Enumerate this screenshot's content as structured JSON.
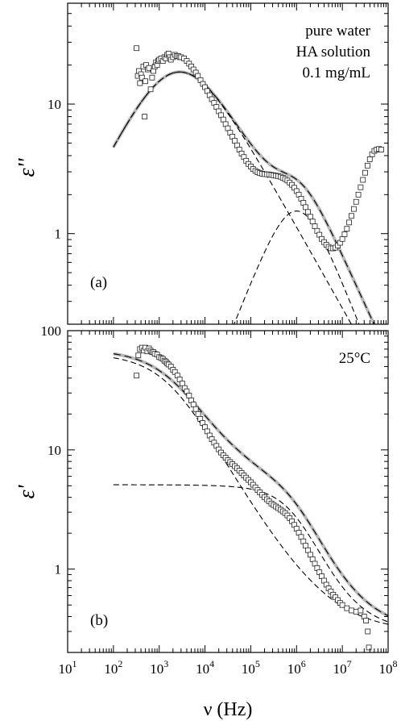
{
  "chart_data": [
    {
      "type": "scatter",
      "panel_label": "(a)",
      "ylabel": "ε''",
      "x_scale": "log",
      "y_scale": "log",
      "xlim": [
        10,
        100000000
      ],
      "ylim": [
        0.2,
        60
      ],
      "y_ticks": [
        {
          "value": 1,
          "label": "1"
        },
        {
          "value": 10,
          "label": "10"
        }
      ],
      "annotations": [
        "pure water",
        "HA solution",
        "0.1 mg/mL"
      ],
      "annotation_position": "top-right",
      "grid": false,
      "relaxations": [
        {
          "d_eps": 60,
          "tau": 6.48e-05,
          "alpha": 0.7,
          "beta": 0.9
        },
        {
          "d_eps": 3.5,
          "tau": 1.59e-07,
          "alpha": 0.9,
          "beta": 1.0
        }
      ],
      "high_freq_permittivity": 0.3,
      "points": [
        [
          320,
          27
        ],
        [
          340,
          16.5
        ],
        [
          360,
          18
        ],
        [
          380,
          14.5
        ],
        [
          400,
          17
        ],
        [
          420,
          16
        ],
        [
          450,
          19.5
        ],
        [
          480,
          8
        ],
        [
          500,
          15
        ],
        [
          520,
          20
        ],
        [
          560,
          18.5
        ],
        [
          600,
          19
        ],
        [
          650,
          13
        ],
        [
          700,
          16
        ],
        [
          750,
          18
        ],
        [
          800,
          19.5
        ],
        [
          850,
          21
        ],
        [
          900,
          20
        ],
        [
          950,
          21.5
        ],
        [
          1000,
          22
        ],
        [
          1100,
          22.5
        ],
        [
          1200,
          21.5
        ],
        [
          1300,
          23
        ],
        [
          1400,
          22.5
        ],
        [
          1500,
          24
        ],
        [
          1600,
          24.5
        ],
        [
          1700,
          23
        ],
        [
          1800,
          22
        ],
        [
          2000,
          23
        ],
        [
          2200,
          24
        ],
        [
          2400,
          23.5
        ],
        [
          2600,
          23.5
        ],
        [
          2800,
          23
        ],
        [
          3000,
          23
        ],
        [
          3500,
          22.5
        ],
        [
          4000,
          21.5
        ],
        [
          4500,
          20.5
        ],
        [
          5000,
          19.5
        ],
        [
          5600,
          18.5
        ],
        [
          6300,
          17.5
        ],
        [
          7000,
          16.5
        ],
        [
          8000,
          15.3
        ],
        [
          9000,
          14.3
        ],
        [
          10000,
          13.5
        ],
        [
          11200,
          12.6
        ],
        [
          12600,
          11.7
        ],
        [
          14100,
          10.9
        ],
        [
          15800,
          10.2
        ],
        [
          17800,
          9.5
        ],
        [
          20000,
          8.8
        ],
        [
          22400,
          8.2
        ],
        [
          25100,
          7.6
        ],
        [
          28200,
          7.0
        ],
        [
          31600,
          6.5
        ],
        [
          35500,
          6.0
        ],
        [
          39800,
          5.6
        ],
        [
          44700,
          5.2
        ],
        [
          50100,
          4.8
        ],
        [
          56200,
          4.45
        ],
        [
          63100,
          4.15
        ],
        [
          70800,
          3.9
        ],
        [
          79400,
          3.65
        ],
        [
          89100,
          3.45
        ],
        [
          100000,
          3.3
        ],
        [
          112000,
          3.15
        ],
        [
          126000,
          3.05
        ],
        [
          141000,
          2.98
        ],
        [
          158000,
          2.93
        ],
        [
          178000,
          2.9
        ],
        [
          200000,
          2.88
        ],
        [
          224000,
          2.87
        ],
        [
          251000,
          2.86
        ],
        [
          282000,
          2.84
        ],
        [
          316000,
          2.82
        ],
        [
          355000,
          2.8
        ],
        [
          398000,
          2.78
        ],
        [
          447000,
          2.75
        ],
        [
          501000,
          2.7
        ],
        [
          562000,
          2.64
        ],
        [
          631000,
          2.57
        ],
        [
          708000,
          2.48
        ],
        [
          794000,
          2.38
        ],
        [
          891000,
          2.26
        ],
        [
          1000000,
          2.13
        ],
        [
          1120000,
          2.0
        ],
        [
          1260000,
          1.86
        ],
        [
          1410000,
          1.73
        ],
        [
          1580000,
          1.6
        ],
        [
          1780000,
          1.47
        ],
        [
          2000000,
          1.35
        ],
        [
          2240000,
          1.24
        ],
        [
          2510000,
          1.14
        ],
        [
          2820000,
          1.05
        ],
        [
          3160000,
          0.98
        ],
        [
          3550000,
          0.91
        ],
        [
          3980000,
          0.86
        ],
        [
          4470000,
          0.82
        ],
        [
          5010000,
          0.79
        ],
        [
          5620000,
          0.77
        ],
        [
          6310000,
          0.77
        ],
        [
          7080000,
          0.78
        ],
        [
          7940000,
          0.81
        ],
        [
          8910000,
          0.85
        ],
        [
          10000000,
          0.91
        ],
        [
          11200000,
          0.99
        ],
        [
          12600000,
          1.09
        ],
        [
          14100000,
          1.22
        ],
        [
          15800000,
          1.37
        ],
        [
          17800000,
          1.55
        ],
        [
          20000000,
          1.76
        ],
        [
          22400000,
          2.0
        ],
        [
          25100000,
          2.28
        ],
        [
          28200000,
          2.6
        ],
        [
          31600000,
          2.95
        ],
        [
          35500000,
          3.35
        ],
        [
          39800000,
          3.75
        ],
        [
          44700000,
          4.1
        ],
        [
          50100000,
          4.35
        ],
        [
          56200000,
          4.45
        ],
        [
          63100000,
          4.5
        ],
        [
          70800000,
          4.45
        ]
      ]
    },
    {
      "type": "scatter",
      "panel_label": "(b)",
      "ylabel": "ε'",
      "xlabel": "ν (Hz)",
      "x_scale": "log",
      "y_scale": "log",
      "xlim": [
        10,
        100000000
      ],
      "ylim": [
        0.2,
        100
      ],
      "x_ticks": [
        {
          "value": 10,
          "base": "10",
          "exp": "1"
        },
        {
          "value": 100,
          "base": "10",
          "exp": "2"
        },
        {
          "value": 1000,
          "base": "10",
          "exp": "3"
        },
        {
          "value": 10000,
          "base": "10",
          "exp": "4"
        },
        {
          "value": 100000,
          "base": "10",
          "exp": "5"
        },
        {
          "value": 1000000,
          "base": "10",
          "exp": "6"
        },
        {
          "value": 10000000,
          "base": "10",
          "exp": "7"
        },
        {
          "value": 100000000,
          "base": "10",
          "exp": "8"
        }
      ],
      "y_ticks": [
        {
          "value": 1,
          "label": "1"
        },
        {
          "value": 10,
          "label": "10"
        },
        {
          "value": 100,
          "label": "100"
        }
      ],
      "annotations": [
        "25°C"
      ],
      "annotation_position": "top-right",
      "grid": false,
      "relaxations": [
        {
          "d_eps": 65,
          "tau": 7.96e-05,
          "alpha": 0.62,
          "beta": 1.0
        },
        {
          "d_eps": 4.8,
          "tau": 1.59e-07,
          "alpha": 0.75,
          "beta": 1.0
        }
      ],
      "high_freq_permittivity": 0.3,
      "points": [
        [
          320,
          42
        ],
        [
          350,
          62
        ],
        [
          380,
          70
        ],
        [
          420,
          72
        ],
        [
          460,
          68
        ],
        [
          500,
          72
        ],
        [
          550,
          67
        ],
        [
          600,
          71
        ],
        [
          650,
          68
        ],
        [
          700,
          66
        ],
        [
          750,
          66
        ],
        [
          800,
          64
        ],
        [
          900,
          63
        ],
        [
          1000,
          60
        ],
        [
          1100,
          59
        ],
        [
          1200,
          58
        ],
        [
          1300,
          56
        ],
        [
          1400,
          55
        ],
        [
          1500,
          53
        ],
        [
          1600,
          52
        ],
        [
          1800,
          50
        ],
        [
          2000,
          47
        ],
        [
          2200,
          45
        ],
        [
          2500,
          42
        ],
        [
          2800,
          39
        ],
        [
          3200,
          36
        ],
        [
          3600,
          33
        ],
        [
          4000,
          31
        ],
        [
          4500,
          28.5
        ],
        [
          5000,
          26
        ],
        [
          5600,
          24
        ],
        [
          6300,
          22
        ],
        [
          7100,
          20
        ],
        [
          7900,
          18.2
        ],
        [
          8900,
          16.8
        ],
        [
          10000,
          15.5
        ],
        [
          11200,
          14.3
        ],
        [
          12600,
          13.2
        ],
        [
          14100,
          12.3
        ],
        [
          15800,
          11.5
        ],
        [
          17800,
          10.8
        ],
        [
          20000,
          10.1
        ],
        [
          22400,
          9.5
        ],
        [
          25100,
          9.0
        ],
        [
          28200,
          8.6
        ],
        [
          31600,
          8.2
        ],
        [
          35500,
          7.9
        ],
        [
          39800,
          7.6
        ],
        [
          44700,
          7.3
        ],
        [
          50100,
          7.0
        ],
        [
          56200,
          6.7
        ],
        [
          63100,
          6.4
        ],
        [
          70800,
          6.1
        ],
        [
          79400,
          5.85
        ],
        [
          89100,
          5.6
        ],
        [
          100000,
          5.35
        ],
        [
          112000,
          5.1
        ],
        [
          126000,
          4.85
        ],
        [
          141000,
          4.6
        ],
        [
          158000,
          4.4
        ],
        [
          178000,
          4.2
        ],
        [
          200000,
          4.0
        ],
        [
          224000,
          3.85
        ],
        [
          251000,
          3.7
        ],
        [
          282000,
          3.55
        ],
        [
          316000,
          3.45
        ],
        [
          355000,
          3.35
        ],
        [
          398000,
          3.25
        ],
        [
          447000,
          3.15
        ],
        [
          501000,
          3.05
        ],
        [
          562000,
          2.95
        ],
        [
          631000,
          2.82
        ],
        [
          708000,
          2.68
        ],
        [
          794000,
          2.52
        ],
        [
          891000,
          2.35
        ],
        [
          1000000,
          2.18
        ],
        [
          1120000,
          2.02
        ],
        [
          1260000,
          1.86
        ],
        [
          1410000,
          1.71
        ],
        [
          1580000,
          1.57
        ],
        [
          1780000,
          1.44
        ],
        [
          2000000,
          1.32
        ],
        [
          2240000,
          1.21
        ],
        [
          2510000,
          1.11
        ],
        [
          2820000,
          1.02
        ],
        [
          3160000,
          0.94
        ],
        [
          3550000,
          0.87
        ],
        [
          3980000,
          0.8
        ],
        [
          4470000,
          0.74
        ],
        [
          5010000,
          0.69
        ],
        [
          5620000,
          0.65
        ],
        [
          6310000,
          0.61
        ],
        [
          7080000,
          0.58
        ],
        [
          7940000,
          0.55
        ],
        [
          8910000,
          0.52
        ],
        [
          10000000,
          0.5
        ],
        [
          12600000,
          0.47
        ],
        [
          15800000,
          0.45
        ],
        [
          20000000,
          0.44
        ],
        [
          25100000,
          0.45
        ],
        [
          30000000,
          0.4
        ],
        [
          33000000,
          0.37
        ],
        [
          36000000,
          0.3
        ],
        [
          38000000,
          0.22
        ]
      ]
    }
  ]
}
